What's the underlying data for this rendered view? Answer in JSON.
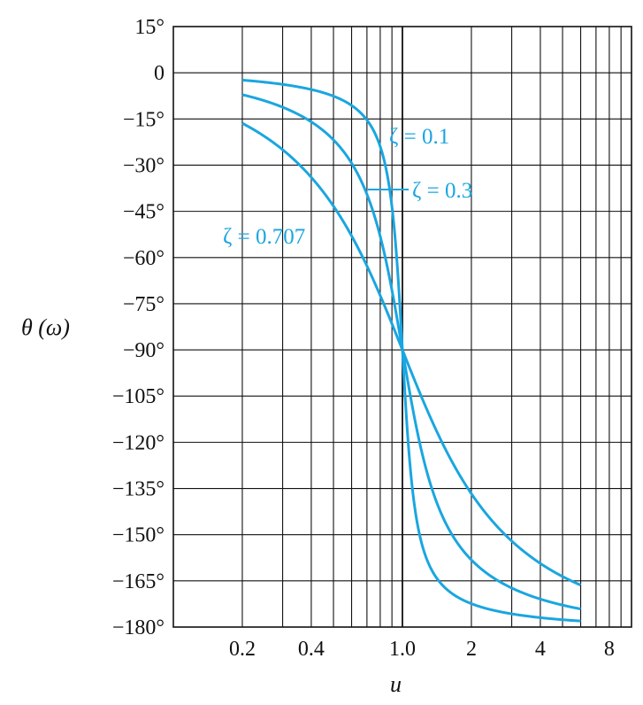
{
  "chart_data": {
    "type": "line",
    "title": "",
    "xlabel": "u",
    "ylabel": "θ (ω)",
    "x_scale": "log",
    "xlim": [
      0.1,
      10
    ],
    "ylim": [
      -180,
      15
    ],
    "grid": true,
    "x_ticks": [
      {
        "value": 0.2,
        "label": "0.2"
      },
      {
        "value": 0.4,
        "label": "0.4"
      },
      {
        "value": 1.0,
        "label": "1.0"
      },
      {
        "value": 2,
        "label": "2"
      },
      {
        "value": 4,
        "label": "4"
      },
      {
        "value": 8,
        "label": "8"
      }
    ],
    "y_ticks": [
      {
        "value": 15,
        "label": "15°"
      },
      {
        "value": 0,
        "label": "0"
      },
      {
        "value": -15,
        "label": "−15°"
      },
      {
        "value": -30,
        "label": "−30°"
      },
      {
        "value": -45,
        "label": "−45°"
      },
      {
        "value": -60,
        "label": "−60°"
      },
      {
        "value": -75,
        "label": "−75°"
      },
      {
        "value": -90,
        "label": "−90°"
      },
      {
        "value": -105,
        "label": "−105°"
      },
      {
        "value": -120,
        "label": "−120°"
      },
      {
        "value": -135,
        "label": "−135°"
      },
      {
        "value": -150,
        "label": "−150°"
      },
      {
        "value": -165,
        "label": "−165°"
      },
      {
        "value": -180,
        "label": "−180°"
      }
    ],
    "series": [
      {
        "name": "ζ = 0.1",
        "label_text": "ζ = 0.1",
        "zeta": 0.1,
        "x": [
          0.2,
          0.4,
          0.6,
          0.8,
          0.9,
          0.95,
          1.0,
          1.05,
          1.1,
          1.2,
          1.5,
          2,
          3,
          4,
          6
        ],
        "y": [
          -2.4,
          -5.4,
          -10.6,
          -24.0,
          -43.5,
          -62.8,
          -90,
          -117.2,
          -133.5,
          -150.4,
          -166.3,
          -172.4,
          -175.7,
          -176.8,
          -177.8
        ]
      },
      {
        "name": "ζ = 0.3",
        "label_text": "ζ = 0.3",
        "zeta": 0.3,
        "x": [
          0.2,
          0.4,
          0.6,
          0.8,
          0.9,
          1.0,
          1.1,
          1.2,
          1.5,
          2,
          3,
          4,
          6
        ],
        "y": [
          -7.1,
          -15.9,
          -29.4,
          -53.1,
          -70.5,
          -90,
          -107.6,
          -121.3,
          -144.2,
          -158.2,
          -167.2,
          -170.8,
          -173.7
        ]
      },
      {
        "name": "ζ = 0.707",
        "label_text": "ζ = 0.707",
        "zeta": 0.707,
        "x": [
          0.2,
          0.4,
          0.6,
          0.8,
          1.0,
          1.2,
          1.5,
          2,
          3,
          4,
          6
        ],
        "y": [
          -16.4,
          -33.9,
          -53.5,
          -72.5,
          -90,
          -104.4,
          -121.1,
          -136.7,
          -151.9,
          -159.3,
          -166.3
        ]
      }
    ],
    "colors": {
      "curve": "#1aa6e0",
      "grid": "#111111"
    }
  }
}
